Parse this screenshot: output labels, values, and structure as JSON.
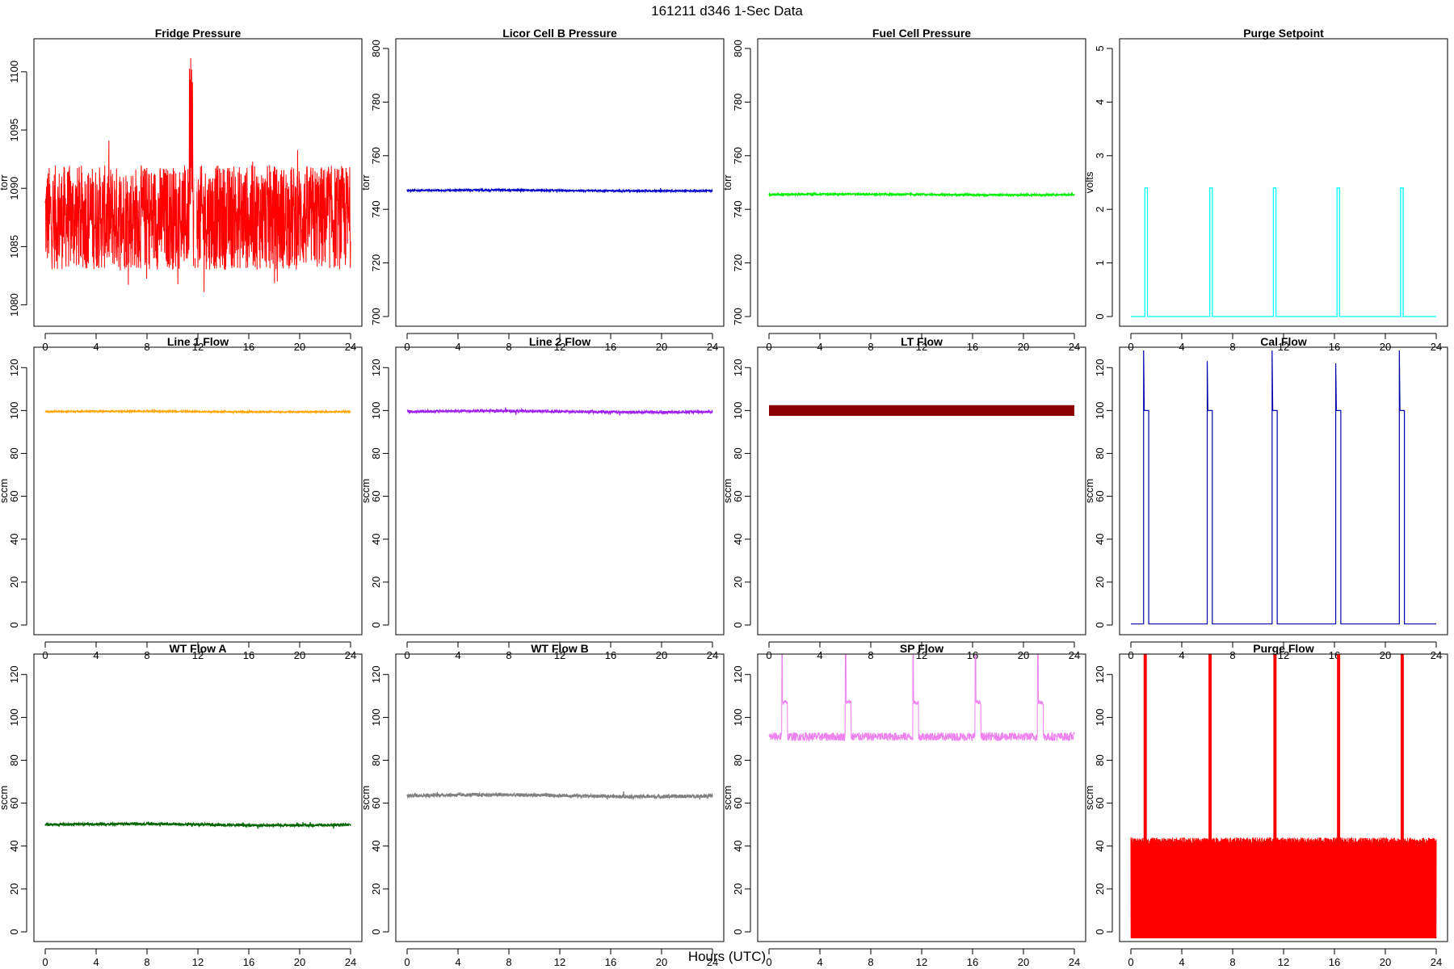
{
  "figure": {
    "title": "161211   d346   1-Sec Data",
    "xlabel": "Hours (UTC)"
  },
  "chart_data": [
    {
      "type": "line",
      "title": "Fridge Pressure",
      "ylabel": "torr",
      "color": "#ff0000",
      "xlim": [
        0,
        24
      ],
      "ylim": [
        1079,
        1102
      ],
      "xticks": [
        0,
        4,
        8,
        12,
        16,
        20,
        24
      ],
      "yticks": [
        1080,
        1085,
        1090,
        1095,
        1100
      ],
      "series": [
        {
          "style": "noise",
          "base": 1087.5,
          "amp": 4.5,
          "spike": [
            11.3,
            11.6,
            1101.5
          ]
        }
      ]
    },
    {
      "type": "line",
      "title": "Licor Cell B Pressure",
      "ylabel": "torr",
      "color": "#0000cc",
      "xlim": [
        0,
        24
      ],
      "ylim": [
        700,
        800
      ],
      "xticks": [
        0,
        4,
        8,
        12,
        16,
        20,
        24
      ],
      "yticks": [
        700,
        720,
        740,
        760,
        780,
        800
      ],
      "series": [
        {
          "style": "flat",
          "base": 747,
          "amp": 0.3
        }
      ]
    },
    {
      "type": "line",
      "title": "Fuel Cell Pressure",
      "ylabel": "torr",
      "color": "#00ee00",
      "xlim": [
        0,
        24
      ],
      "ylim": [
        700,
        800
      ],
      "xticks": [
        0,
        4,
        8,
        12,
        16,
        20,
        24
      ],
      "yticks": [
        700,
        720,
        740,
        760,
        780,
        800
      ],
      "series": [
        {
          "style": "flat",
          "base": 745.5,
          "amp": 0.3
        }
      ]
    },
    {
      "type": "line",
      "title": "Purge Setpoint",
      "ylabel": "volts",
      "color": "#00ffff",
      "xlim": [
        0,
        24
      ],
      "ylim": [
        0,
        5
      ],
      "xticks": [
        0,
        4,
        8,
        12,
        16,
        20,
        24
      ],
      "yticks": [
        0,
        1,
        2,
        3,
        4,
        5
      ],
      "series": [
        {
          "style": "pulse",
          "base": 0,
          "peak": 2.4,
          "pulses": [
            1.1,
            6.2,
            11.2,
            16.2,
            21.2
          ],
          "width": 0.2
        }
      ]
    },
    {
      "type": "line",
      "title": "Line 1 Flow",
      "ylabel": "sccm",
      "color": "#ffa500",
      "xlim": [
        0,
        24
      ],
      "ylim": [
        0,
        125
      ],
      "xticks": [
        0,
        4,
        8,
        12,
        16,
        20,
        24
      ],
      "yticks": [
        0,
        20,
        40,
        60,
        80,
        100,
        120
      ],
      "series": [
        {
          "style": "flat",
          "base": 99.5,
          "amp": 0.3
        }
      ]
    },
    {
      "type": "line",
      "title": "Line 2 Flow",
      "ylabel": "sccm",
      "color": "#a020f0",
      "xlim": [
        0,
        24
      ],
      "ylim": [
        0,
        125
      ],
      "xticks": [
        0,
        4,
        8,
        12,
        16,
        20,
        24
      ],
      "yticks": [
        0,
        20,
        40,
        60,
        80,
        100,
        120
      ],
      "series": [
        {
          "style": "flat",
          "base": 99.5,
          "amp": 0.6
        }
      ]
    },
    {
      "type": "line",
      "title": "LT Flow",
      "ylabel": "sccm",
      "color": "#8b0000",
      "xlim": [
        0,
        24
      ],
      "ylim": [
        0,
        125
      ],
      "xticks": [
        0,
        4,
        8,
        12,
        16,
        20,
        24
      ],
      "yticks": [
        0,
        20,
        40,
        60,
        80,
        100,
        120
      ],
      "series": [
        {
          "style": "band",
          "base": 100,
          "amp": 2.5
        }
      ]
    },
    {
      "type": "line",
      "title": "Cal Flow",
      "ylabel": "sccm",
      "color": "#0000aa",
      "xlim": [
        0,
        24
      ],
      "ylim": [
        0,
        125
      ],
      "xticks": [
        0,
        4,
        8,
        12,
        16,
        20,
        24
      ],
      "yticks": [
        0,
        20,
        40,
        60,
        80,
        100,
        120
      ],
      "series": [
        {
          "style": "calpulse",
          "base": 0.5,
          "peak": 100,
          "spike": [
            128,
            123,
            128,
            122,
            128
          ],
          "pulses": [
            1.0,
            6.0,
            11.1,
            16.1,
            21.1
          ],
          "width": 0.4
        }
      ]
    },
    {
      "type": "line",
      "title": "WT Flow A",
      "ylabel": "sccm",
      "color": "#006400",
      "xlim": [
        0,
        24
      ],
      "ylim": [
        0,
        125
      ],
      "xticks": [
        0,
        4,
        8,
        12,
        16,
        20,
        24
      ],
      "yticks": [
        0,
        20,
        40,
        60,
        80,
        100,
        120
      ],
      "series": [
        {
          "style": "flat",
          "base": 50,
          "amp": 0.6
        }
      ]
    },
    {
      "type": "line",
      "title": "WT Flow B",
      "ylabel": "sccm",
      "color": "#808080",
      "xlim": [
        0,
        24
      ],
      "ylim": [
        0,
        125
      ],
      "xticks": [
        0,
        4,
        8,
        12,
        16,
        20,
        24
      ],
      "yticks": [
        0,
        20,
        40,
        60,
        80,
        100,
        120
      ],
      "series": [
        {
          "style": "flat",
          "base": 63.5,
          "amp": 0.8
        }
      ]
    },
    {
      "type": "line",
      "title": "SP Flow",
      "ylabel": "sccm",
      "color": "#ee82ee",
      "xlim": [
        0,
        24
      ],
      "ylim": [
        0,
        125
      ],
      "xticks": [
        0,
        4,
        8,
        12,
        16,
        20,
        24
      ],
      "yticks": [
        0,
        20,
        40,
        60,
        80,
        100,
        120
      ],
      "series": [
        {
          "style": "sppulse",
          "base": 91,
          "amp": 2,
          "peak": 107,
          "pulses": [
            1.0,
            6.0,
            11.3,
            16.2,
            21.1
          ],
          "width": 0.45
        }
      ]
    },
    {
      "type": "line",
      "title": "Purge Flow",
      "ylabel": "sccm",
      "color": "#ff0000",
      "xlim": [
        0,
        24
      ],
      "ylim": [
        0,
        125
      ],
      "xticks": [
        0,
        4,
        8,
        12,
        16,
        20,
        24
      ],
      "yticks": [
        0,
        20,
        40,
        60,
        80,
        100,
        120
      ],
      "series": [
        {
          "style": "purge",
          "base": -3,
          "top": 44,
          "pulses": [
            1.0,
            6.1,
            11.2,
            16.2,
            21.2
          ]
        }
      ]
    }
  ]
}
